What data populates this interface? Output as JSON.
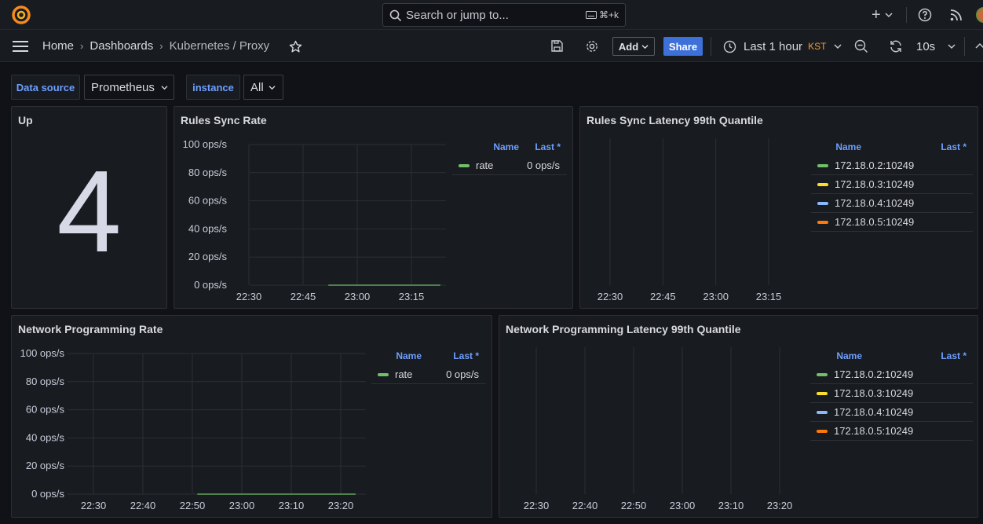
{
  "topbar": {
    "search_placeholder": "Search or jump to...",
    "search_shortcut": "⌘+k",
    "plus_label": "+"
  },
  "breadcrumb": {
    "home": "Home",
    "dashboards": "Dashboards",
    "current": "Kubernetes / Proxy"
  },
  "toolbar": {
    "add_label": "Add",
    "share_label": "Share",
    "time_range": "Last 1 hour",
    "timezone": "KST",
    "refresh_interval": "10s"
  },
  "variables": {
    "datasource_label": "Data source",
    "datasource_value": "Prometheus",
    "instance_label": "instance",
    "instance_value": "All"
  },
  "colors": {
    "green": "#73bf69",
    "yellow": "#fade2a",
    "blue": "#8ab8ff",
    "orange": "#ff780a",
    "accent": "#6e9fff",
    "timezone": "#ff9830"
  },
  "panels": {
    "up": {
      "title": "Up",
      "value": "4"
    },
    "rules_sync_rate": {
      "title": "Rules Sync Rate",
      "legend_name_header": "Name",
      "legend_last_header": "Last *",
      "legend": [
        {
          "name": "rate",
          "last": "0 ops/s",
          "color": "#73bf69"
        }
      ]
    },
    "rules_sync_latency": {
      "title": "Rules Sync Latency 99th Quantile",
      "legend_name_header": "Name",
      "legend_last_header": "Last *",
      "legend": [
        {
          "name": "172.18.0.2:10249",
          "color": "#73bf69"
        },
        {
          "name": "172.18.0.3:10249",
          "color": "#fade2a"
        },
        {
          "name": "172.18.0.4:10249",
          "color": "#8ab8ff"
        },
        {
          "name": "172.18.0.5:10249",
          "color": "#ff780a"
        }
      ]
    },
    "net_prog_rate": {
      "title": "Network Programming Rate",
      "legend_name_header": "Name",
      "legend_last_header": "Last *",
      "legend": [
        {
          "name": "rate",
          "last": "0 ops/s",
          "color": "#73bf69"
        }
      ]
    },
    "net_prog_latency": {
      "title": "Network Programming Latency 99th Quantile",
      "legend_name_header": "Name",
      "legend_last_header": "Last *",
      "legend": [
        {
          "name": "172.18.0.2:10249",
          "color": "#73bf69"
        },
        {
          "name": "172.18.0.3:10249",
          "color": "#fade2a"
        },
        {
          "name": "172.18.0.4:10249",
          "color": "#8ab8ff"
        },
        {
          "name": "172.18.0.5:10249",
          "color": "#ff780a"
        }
      ]
    }
  },
  "chart_data": [
    {
      "type": "line",
      "title": "Rules Sync Rate",
      "y_tick_labels": [
        "100 ops/s",
        "80 ops/s",
        "60 ops/s",
        "40 ops/s",
        "20 ops/s",
        "0 ops/s"
      ],
      "x_tick_labels": [
        "22:30",
        "22:45",
        "23:00",
        "23:15"
      ],
      "ylim": [
        0,
        100
      ],
      "grid": true,
      "series": [
        {
          "name": "rate",
          "x": [
            "22:52",
            "23:23"
          ],
          "values": [
            0,
            0
          ]
        }
      ]
    },
    {
      "type": "line",
      "title": "Rules Sync Latency 99th Quantile",
      "x_tick_labels": [
        "22:30",
        "22:45",
        "23:00",
        "23:15"
      ],
      "grid": true,
      "series": [
        {
          "name": "172.18.0.2:10249",
          "values": []
        },
        {
          "name": "172.18.0.3:10249",
          "values": []
        },
        {
          "name": "172.18.0.4:10249",
          "values": []
        },
        {
          "name": "172.18.0.5:10249",
          "values": []
        }
      ]
    },
    {
      "type": "line",
      "title": "Network Programming Rate",
      "y_tick_labels": [
        "100 ops/s",
        "80 ops/s",
        "60 ops/s",
        "40 ops/s",
        "20 ops/s",
        "0 ops/s"
      ],
      "x_tick_labels": [
        "22:30",
        "22:40",
        "22:50",
        "23:00",
        "23:10",
        "23:20"
      ],
      "ylim": [
        0,
        100
      ],
      "grid": true,
      "series": [
        {
          "name": "rate",
          "x": [
            "22:51",
            "23:23"
          ],
          "values": [
            0,
            0
          ]
        }
      ]
    },
    {
      "type": "line",
      "title": "Network Programming Latency 99th Quantile",
      "x_tick_labels": [
        "22:30",
        "22:40",
        "22:50",
        "23:00",
        "23:10",
        "23:20"
      ],
      "grid": true,
      "series": [
        {
          "name": "172.18.0.2:10249",
          "values": []
        },
        {
          "name": "172.18.0.3:10249",
          "values": []
        },
        {
          "name": "172.18.0.4:10249",
          "values": []
        },
        {
          "name": "172.18.0.5:10249",
          "values": []
        }
      ]
    }
  ]
}
